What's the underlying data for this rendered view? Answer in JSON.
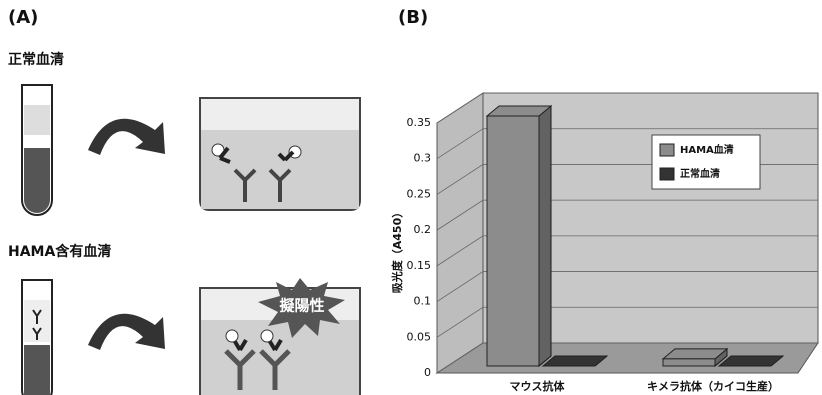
{
  "panel_a": {
    "label": "(A)",
    "normal_serum": "正常血清",
    "hama_serum": "HAMA含有血清",
    "false_positive": "擬陽性"
  },
  "chart_data": {
    "type": "bar",
    "label": "(B)",
    "y_label": "吸光度（A450）",
    "categories": [
      "マウス抗体",
      "キメラ抗体（カイコ生産）"
    ],
    "series": [
      {
        "name": "HAMA血清",
        "color": "#8c8c8c",
        "values": [
          0.35,
          0.01
        ]
      },
      {
        "name": "正常血清",
        "color": "#333333",
        "values": [
          0,
          0
        ]
      }
    ],
    "ylim": [
      0,
      0.35
    ],
    "yticks": [
      0,
      0.05,
      0.1,
      0.15,
      0.2,
      0.25,
      0.3,
      0.35
    ],
    "grid": true
  }
}
